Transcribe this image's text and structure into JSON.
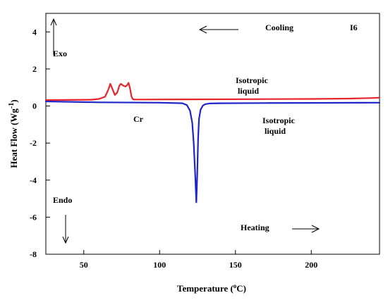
{
  "chart_data": {
    "type": "line",
    "xlabel": {
      "main": "Temperature (",
      "sup": "o",
      "end": "C)"
    },
    "ylabel": {
      "main": "Heat Flow (Wg",
      "sup": "-1",
      "end": ")"
    },
    "xlim": [
      25,
      245
    ],
    "ylim": [
      -8,
      5
    ],
    "xticks": [
      50,
      100,
      150,
      200
    ],
    "yticks": [
      -8,
      -6,
      -4,
      -2,
      0,
      2,
      4
    ],
    "grid": false,
    "series": [
      {
        "color": "#e8242c",
        "x": [
          25,
          55,
          60,
          64,
          66,
          67.5,
          69,
          70.5,
          72,
          73.5,
          74.5,
          76,
          77.5,
          78.5,
          79.5,
          80.5,
          81.5,
          82.5,
          84,
          90,
          120,
          160,
          200,
          225,
          240,
          245
        ],
        "y": [
          0.32,
          0.34,
          0.38,
          0.5,
          0.85,
          1.2,
          0.9,
          0.6,
          0.72,
          1.1,
          1.2,
          1.1,
          1.05,
          1.12,
          1.25,
          0.95,
          0.5,
          0.36,
          0.35,
          0.35,
          0.36,
          0.37,
          0.38,
          0.4,
          0.43,
          0.45
        ]
      },
      {
        "color": "#1f25c8",
        "x": [
          25,
          60,
          100,
          115,
          118,
          120,
          121.5,
          122.5,
          123.5,
          124.2,
          124.8,
          125.4,
          126,
          127,
          128.5,
          130,
          133,
          140,
          170,
          200,
          245
        ],
        "y": [
          0.25,
          0.2,
          0.18,
          0.15,
          0.05,
          -0.25,
          -0.9,
          -2.0,
          -3.8,
          -5.2,
          -3.7,
          -1.7,
          -0.7,
          -0.2,
          0.02,
          0.1,
          0.14,
          0.15,
          0.16,
          0.17,
          0.18
        ]
      }
    ],
    "annotations": {
      "exo": "Exo",
      "endo": "Endo",
      "cooling": "Cooling",
      "sample": "I6",
      "iso_top_1": "Isotropic",
      "iso_top_2": "liquid",
      "iso_bottom_1": "Isotropic",
      "iso_bottom_2": "liquid",
      "cr": "Cr",
      "heating": "Heating"
    }
  }
}
